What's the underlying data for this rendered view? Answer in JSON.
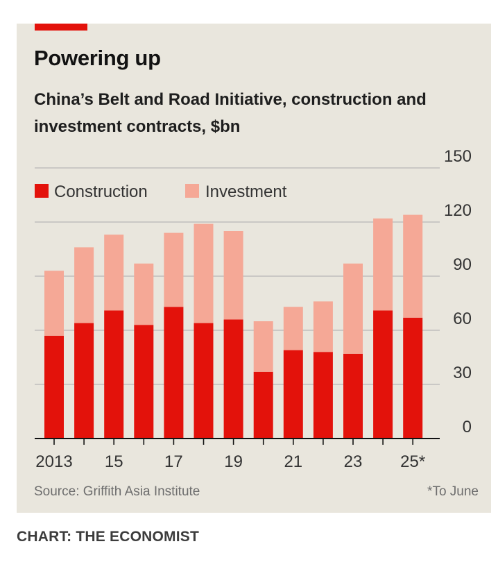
{
  "colors": {
    "accent": "#e3120b",
    "construction": "#e3120b",
    "investment": "#f5a896",
    "gridline": "#b7b7b7",
    "axis": "#121212",
    "background": "#e9e6dd"
  },
  "chart_data": {
    "type": "bar",
    "stacked": true,
    "title": "Powering up",
    "subtitle": "China’s Belt and Road Initiative, construction and investment contracts, $bn",
    "categories": [
      "2013",
      "2014",
      "2015",
      "2016",
      "2017",
      "2018",
      "2019",
      "2020",
      "2021",
      "2022",
      "2023",
      "2024",
      "2025*"
    ],
    "tick_labels": [
      "2013",
      "15",
      "17",
      "19",
      "21",
      "23",
      "25*"
    ],
    "tick_label_categories": [
      "2013",
      "2015",
      "2017",
      "2019",
      "2021",
      "2023",
      "2025*"
    ],
    "series": [
      {
        "name": "Construction",
        "values": [
          57,
          64,
          71,
          63,
          73,
          64,
          66,
          37,
          49,
          48,
          47,
          71,
          67
        ]
      },
      {
        "name": "Investment",
        "values": [
          36,
          42,
          42,
          34,
          41,
          55,
          49,
          28,
          24,
          28,
          50,
          51,
          57
        ]
      }
    ],
    "y_ticks": [
      0,
      30,
      60,
      90,
      120,
      150
    ],
    "ylim": [
      0,
      150
    ],
    "y_axis_side": "right",
    "legend_position": "top-left",
    "grid": true,
    "source": "Source: Griffith Asia Institute",
    "footnote": "*To June",
    "credit": "CHART: THE ECONOMIST"
  }
}
